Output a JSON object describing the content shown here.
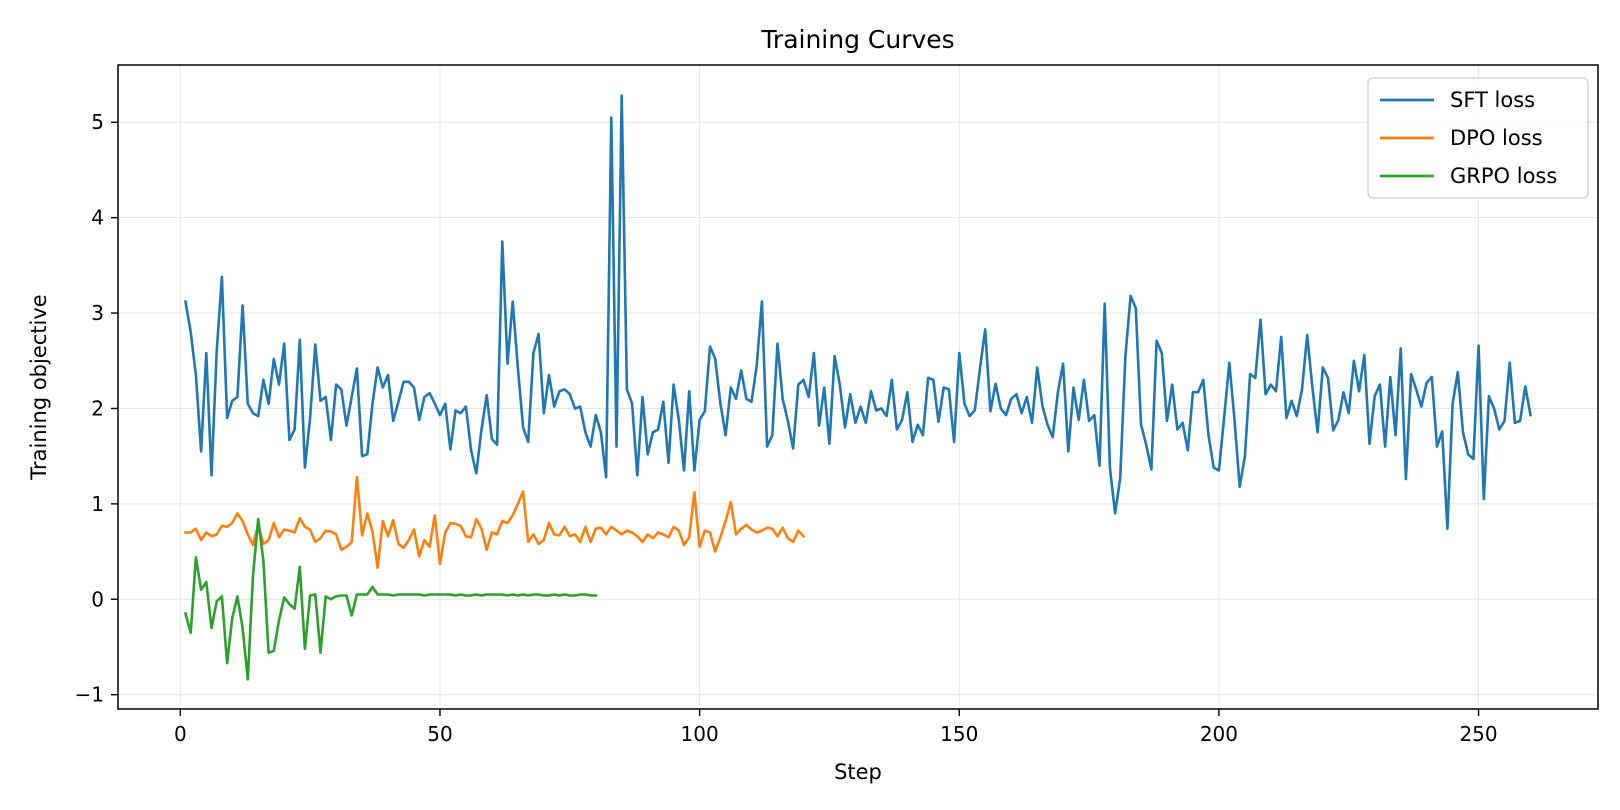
{
  "chart_data": {
    "type": "line",
    "title": "Training Curves",
    "xlabel": "Step",
    "ylabel": "Training objective",
    "xlim": [
      -12,
      273
    ],
    "ylim": [
      -1.15,
      5.6
    ],
    "xticks": [
      0,
      50,
      100,
      150,
      200,
      250
    ],
    "yticks": [
      -1,
      0,
      1,
      2,
      3,
      4,
      5
    ],
    "ytick_labels": [
      "−1",
      "0",
      "1",
      "2",
      "3",
      "4",
      "5"
    ],
    "grid": true,
    "legend_position": "top-right",
    "series": [
      {
        "name": "SFT loss",
        "color": "#1f77b4",
        "x_start": 1,
        "values": [
          3.12,
          2.8,
          2.35,
          1.55,
          2.58,
          1.3,
          2.6,
          3.38,
          1.9,
          2.08,
          2.12,
          3.08,
          2.05,
          1.95,
          1.92,
          2.3,
          2.05,
          2.52,
          2.25,
          2.68,
          1.67,
          1.78,
          2.72,
          1.38,
          1.9,
          2.67,
          2.08,
          2.12,
          1.67,
          2.25,
          2.2,
          1.82,
          2.12,
          2.42,
          1.5,
          1.52,
          2.05,
          2.43,
          2.22,
          2.35,
          1.87,
          2.07,
          2.28,
          2.28,
          2.22,
          1.88,
          2.12,
          2.16,
          2.05,
          1.93,
          2.05,
          1.57,
          1.98,
          1.95,
          2.02,
          1.56,
          1.32,
          1.78,
          2.14,
          1.68,
          1.62,
          3.75,
          2.47,
          3.12,
          2.42,
          1.8,
          1.65,
          2.58,
          2.78,
          1.95,
          2.35,
          2.02,
          2.18,
          2.2,
          2.15,
          2.0,
          2.02,
          1.75,
          1.6,
          1.93,
          1.75,
          1.28,
          5.05,
          1.6,
          5.28,
          2.2,
          2.05,
          1.3,
          2.12,
          1.52,
          1.75,
          1.78,
          2.07,
          1.43,
          2.25,
          1.88,
          1.35,
          2.18,
          1.35,
          1.88,
          1.97,
          2.65,
          2.52,
          2.05,
          1.72,
          2.22,
          2.1,
          2.4,
          2.1,
          2.07,
          2.45,
          3.12,
          1.6,
          1.72,
          2.68,
          2.1,
          1.87,
          1.58,
          2.25,
          2.3,
          2.12,
          2.58,
          1.82,
          2.22,
          1.63,
          2.55,
          2.25,
          1.8,
          2.15,
          1.85,
          2.02,
          1.85,
          2.18,
          1.98,
          2.0,
          1.92,
          2.3,
          1.78,
          1.88,
          2.17,
          1.65,
          1.83,
          1.72,
          2.32,
          2.3,
          1.86,
          2.22,
          2.2,
          1.65,
          2.58,
          2.05,
          1.92,
          1.98,
          2.42,
          2.83,
          1.97,
          2.26,
          2.0,
          1.93,
          2.1,
          2.15,
          1.95,
          2.12,
          1.85,
          2.43,
          2.03,
          1.83,
          1.7,
          2.17,
          2.47,
          1.55,
          2.22,
          1.88,
          2.3,
          1.87,
          1.93,
          1.4,
          3.1,
          1.38,
          0.9,
          1.27,
          2.55,
          3.18,
          3.05,
          1.83,
          1.62,
          1.36,
          2.71,
          2.58,
          1.87,
          2.25,
          1.78,
          1.85,
          1.56,
          2.17,
          2.17,
          2.3,
          1.72,
          1.38,
          1.35,
          1.9,
          2.48,
          1.88,
          1.18,
          1.5,
          2.36,
          2.32,
          2.93,
          2.15,
          2.25,
          2.18,
          2.75,
          1.9,
          2.08,
          1.92,
          2.2,
          2.77,
          2.22,
          1.75,
          2.43,
          2.32,
          1.77,
          1.88,
          2.17,
          1.95,
          2.5,
          2.18,
          2.56,
          1.63,
          2.13,
          2.25,
          1.6,
          2.33,
          1.72,
          2.63,
          1.26,
          2.36,
          2.2,
          2.02,
          2.27,
          2.33,
          1.6,
          1.76,
          0.74,
          2.05,
          2.38,
          1.75,
          1.52,
          1.47,
          2.66,
          1.05,
          2.13,
          2.0,
          1.78,
          1.87,
          2.48,
          1.85,
          1.87,
          2.23,
          1.93
        ]
      },
      {
        "name": "DPO loss",
        "color": "#ff7f0e",
        "x_start": 1,
        "values": [
          0.7,
          0.7,
          0.74,
          0.62,
          0.7,
          0.66,
          0.68,
          0.77,
          0.76,
          0.8,
          0.9,
          0.82,
          0.68,
          0.57,
          0.78,
          0.58,
          0.62,
          0.8,
          0.65,
          0.73,
          0.72,
          0.7,
          0.85,
          0.76,
          0.73,
          0.6,
          0.64,
          0.72,
          0.71,
          0.68,
          0.52,
          0.55,
          0.6,
          1.28,
          0.67,
          0.9,
          0.71,
          0.33,
          0.82,
          0.66,
          0.83,
          0.58,
          0.54,
          0.62,
          0.73,
          0.45,
          0.62,
          0.55,
          0.88,
          0.37,
          0.7,
          0.8,
          0.79,
          0.77,
          0.66,
          0.65,
          0.84,
          0.74,
          0.52,
          0.7,
          0.68,
          0.82,
          0.8,
          0.88,
          1.0,
          1.13,
          0.6,
          0.68,
          0.58,
          0.62,
          0.8,
          0.68,
          0.67,
          0.76,
          0.66,
          0.68,
          0.6,
          0.76,
          0.6,
          0.74,
          0.75,
          0.68,
          0.76,
          0.72,
          0.68,
          0.72,
          0.7,
          0.66,
          0.6,
          0.68,
          0.64,
          0.7,
          0.68,
          0.65,
          0.76,
          0.72,
          0.57,
          0.65,
          1.12,
          0.55,
          0.72,
          0.7,
          0.5,
          0.65,
          0.82,
          1.02,
          0.68,
          0.74,
          0.78,
          0.73,
          0.7,
          0.72,
          0.75,
          0.74,
          0.66,
          0.75,
          0.64,
          0.6,
          0.72,
          0.66
        ]
      },
      {
        "name": "GRPO loss",
        "color": "#2ca02c",
        "x_start": 1,
        "values": [
          -0.15,
          -0.35,
          0.44,
          0.1,
          0.18,
          -0.3,
          -0.02,
          0.03,
          -0.67,
          -0.2,
          0.03,
          -0.3,
          -0.84,
          0.25,
          0.84,
          0.4,
          -0.56,
          -0.54,
          -0.22,
          0.02,
          -0.05,
          -0.1,
          0.34,
          -0.52,
          0.04,
          0.05,
          -0.56,
          0.03,
          0.0,
          0.03,
          0.04,
          0.04,
          -0.17,
          0.05,
          0.05,
          0.05,
          0.13,
          0.05,
          0.05,
          0.05,
          0.04,
          0.05,
          0.05,
          0.05,
          0.05,
          0.05,
          0.04,
          0.05,
          0.05,
          0.05,
          0.05,
          0.05,
          0.04,
          0.05,
          0.04,
          0.04,
          0.05,
          0.04,
          0.05,
          0.05,
          0.05,
          0.05,
          0.04,
          0.05,
          0.04,
          0.05,
          0.04,
          0.05,
          0.05,
          0.04,
          0.04,
          0.05,
          0.04,
          0.05,
          0.04,
          0.04,
          0.05,
          0.05,
          0.04,
          0.04
        ]
      }
    ]
  }
}
